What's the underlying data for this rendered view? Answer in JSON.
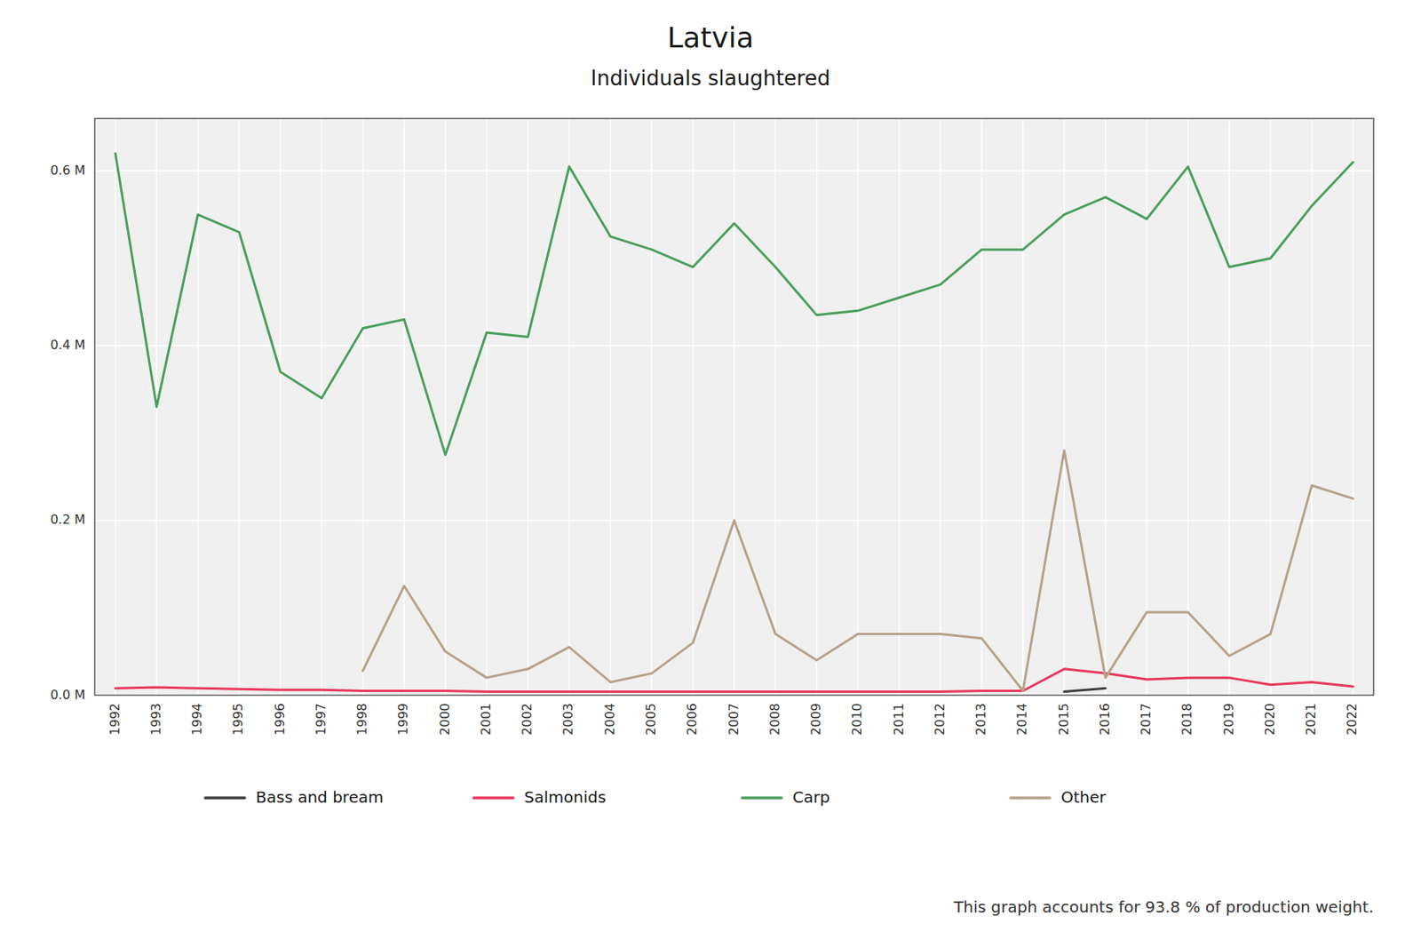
{
  "chart_data": {
    "type": "line",
    "title": "Latvia",
    "subtitle": "Individuals slaughtered",
    "footer": "This graph accounts for 93.8 % of production weight.",
    "x": [
      1992,
      1993,
      1994,
      1995,
      1996,
      1997,
      1998,
      1999,
      2000,
      2001,
      2002,
      2003,
      2004,
      2005,
      2006,
      2007,
      2008,
      2009,
      2010,
      2011,
      2012,
      2013,
      2014,
      2015,
      2016,
      2017,
      2018,
      2019,
      2020,
      2021,
      2022
    ],
    "series": [
      {
        "name": "Bass and bream",
        "color": "#3d3d3d",
        "values": [
          null,
          null,
          null,
          null,
          null,
          null,
          null,
          null,
          null,
          null,
          null,
          null,
          null,
          null,
          null,
          null,
          null,
          null,
          null,
          null,
          null,
          null,
          null,
          4000,
          8000,
          null,
          null,
          null,
          null,
          null,
          null
        ]
      },
      {
        "name": "Salmonids",
        "color": "#e8365d",
        "values": [
          8000,
          9000,
          8000,
          7000,
          6000,
          6000,
          5000,
          5000,
          5000,
          4000,
          4000,
          4000,
          4000,
          4000,
          4000,
          4000,
          4000,
          4000,
          4000,
          4000,
          4000,
          5000,
          5000,
          30000,
          25000,
          18000,
          20000,
          20000,
          12000,
          15000,
          10000
        ]
      },
      {
        "name": "Carp",
        "color": "#4a9e5c",
        "values": [
          620000,
          330000,
          550000,
          530000,
          370000,
          340000,
          420000,
          430000,
          275000,
          415000,
          410000,
          605000,
          525000,
          510000,
          490000,
          540000,
          490000,
          435000,
          440000,
          455000,
          470000,
          510000,
          510000,
          550000,
          570000,
          545000,
          605000,
          490000,
          500000,
          560000,
          610000
        ]
      },
      {
        "name": "Other",
        "color": "#b5a28a",
        "values": [
          null,
          null,
          null,
          null,
          null,
          null,
          28000,
          125000,
          50000,
          20000,
          30000,
          55000,
          15000,
          25000,
          60000,
          200000,
          70000,
          40000,
          70000,
          70000,
          70000,
          65000,
          5000,
          280000,
          20000,
          95000,
          95000,
          45000,
          70000,
          240000,
          225000
        ]
      }
    ],
    "xlim": [
      1991.5,
      2022.5
    ],
    "xticks": [
      1992,
      1993,
      1994,
      1995,
      1996,
      1997,
      1998,
      1999,
      2000,
      2001,
      2002,
      2003,
      2004,
      2005,
      2006,
      2007,
      2008,
      2009,
      2010,
      2011,
      2012,
      2013,
      2014,
      2015,
      2016,
      2017,
      2018,
      2019,
      2020,
      2021,
      2022
    ],
    "ylim": [
      0,
      660000
    ],
    "yticks": [
      {
        "value": 0,
        "label": "0.0 M"
      },
      {
        "value": 200000,
        "label": "0.2 M"
      },
      {
        "value": 400000,
        "label": "0.4 M"
      },
      {
        "value": 600000,
        "label": "0.6 M"
      }
    ],
    "grid": true,
    "legend": "bottom"
  }
}
